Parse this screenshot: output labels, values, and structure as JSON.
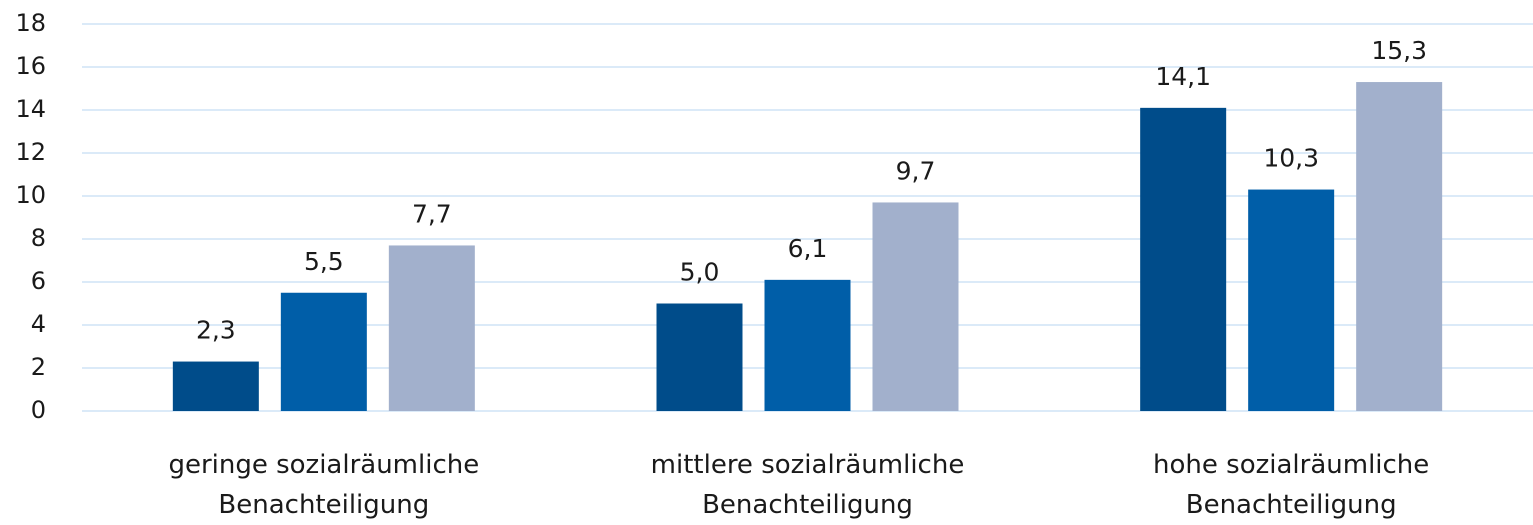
{
  "chart_data": {
    "type": "bar",
    "categories": [
      "geringe sozialräumliche Benachteiligung",
      "mittlere sozialräumliche Benachteiligung",
      "hohe sozialräumliche Benachteiligung"
    ],
    "series": [
      {
        "color": "#004c8a",
        "values": [
          2.3,
          5.0,
          14.1
        ],
        "value_labels": [
          "2,3",
          "5,0",
          "14,1"
        ]
      },
      {
        "color": "#005ea8",
        "values": [
          5.5,
          6.1,
          10.3
        ],
        "value_labels": [
          "5,5",
          "6,1",
          "10,3"
        ]
      },
      {
        "color": "#a2b0cc",
        "values": [
          7.7,
          9.7,
          15.3
        ],
        "value_labels": [
          "7,7",
          "9,7",
          "15,3"
        ]
      }
    ],
    "ylim": [
      0,
      18
    ],
    "yticks": [
      0,
      2,
      4,
      6,
      8,
      10,
      12,
      14,
      16,
      18
    ],
    "grid": true
  }
}
